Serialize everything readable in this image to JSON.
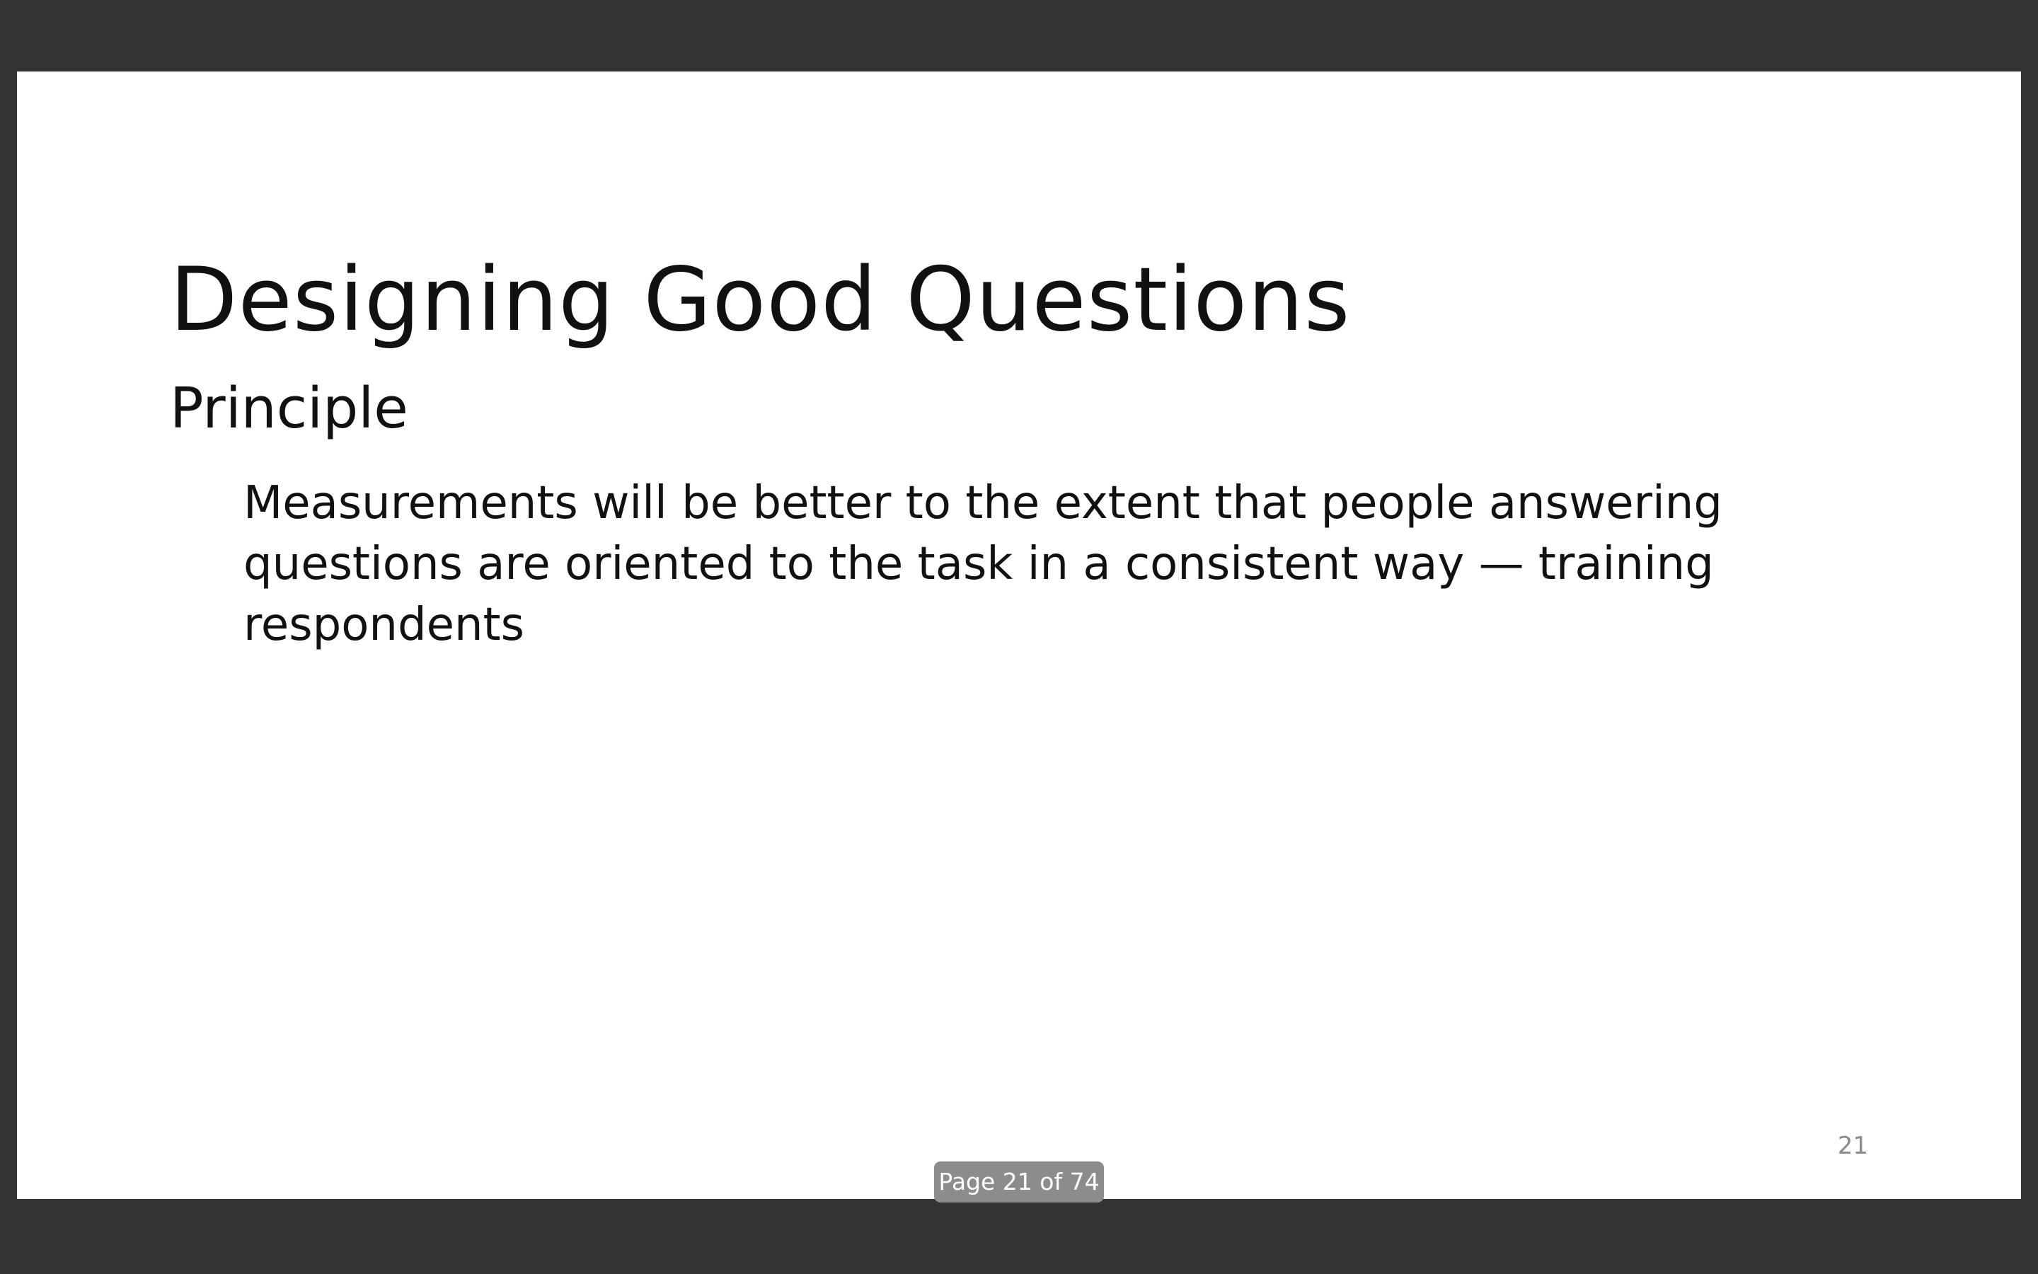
{
  "slide": {
    "title": "Designing Good Questions",
    "section_heading": "Principle",
    "body": "Measurements will be better to the extent that people answering questions are oriented to the task in a consistent way — training respondents",
    "slide_number": "21"
  },
  "viewer": {
    "page_indicator": "Page 21 of 74"
  },
  "colors": {
    "viewer_background": "#333333",
    "slide_background": "#ffffff",
    "text": "#111111",
    "page_indicator_background": "#8c8c8c"
  }
}
